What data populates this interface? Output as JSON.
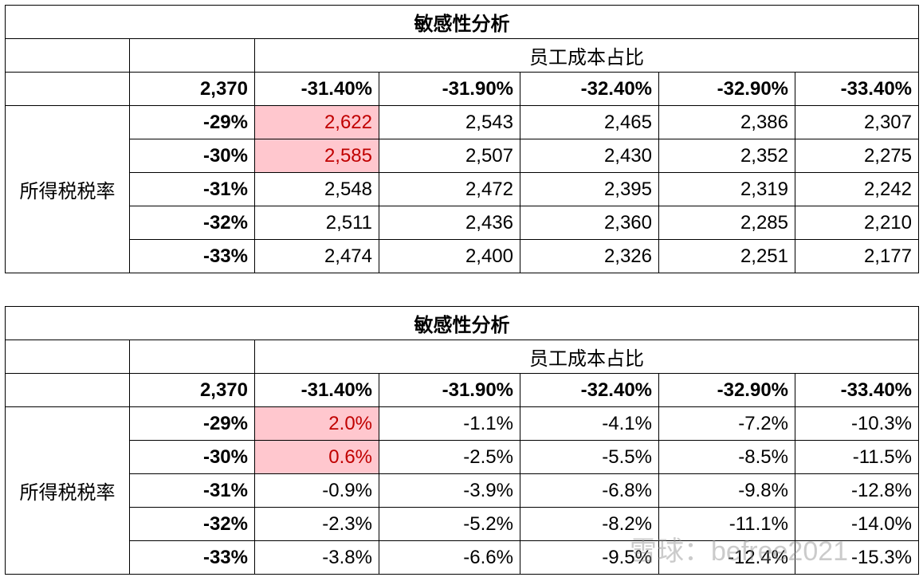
{
  "tables": [
    {
      "title": "敏感性分析",
      "subheader": "员工成本占比",
      "corner_value": "2,370",
      "col_headers": [
        "-31.40%",
        "-31.90%",
        "-32.40%",
        "-32.90%",
        "-33.40%"
      ],
      "row_label": "所得税税率",
      "row_headers": [
        "-29%",
        "-30%",
        "-31%",
        "-32%",
        "-33%"
      ],
      "rows": [
        [
          "2,622",
          "2,543",
          "2,465",
          "2,386",
          "2,307"
        ],
        [
          "2,585",
          "2,507",
          "2,430",
          "2,352",
          "2,275"
        ],
        [
          "2,548",
          "2,472",
          "2,395",
          "2,319",
          "2,242"
        ],
        [
          "2,511",
          "2,436",
          "2,360",
          "2,285",
          "2,210"
        ],
        [
          "2,474",
          "2,400",
          "2,326",
          "2,251",
          "2,177"
        ]
      ]
    },
    {
      "title": "敏感性分析",
      "subheader": "员工成本占比",
      "corner_value": "2,370",
      "col_headers": [
        "-31.40%",
        "-31.90%",
        "-32.40%",
        "-32.90%",
        "-33.40%"
      ],
      "row_label": "所得税税率",
      "row_headers": [
        "-29%",
        "-30%",
        "-31%",
        "-32%",
        "-33%"
      ],
      "rows": [
        [
          "2.0%",
          "-1.1%",
          "-4.1%",
          "-7.2%",
          "-10.3%"
        ],
        [
          "0.6%",
          "-2.5%",
          "-5.5%",
          "-8.5%",
          "-11.5%"
        ],
        [
          "-0.9%",
          "-3.9%",
          "-6.8%",
          "-9.8%",
          "-12.8%"
        ],
        [
          "-2.3%",
          "-5.2%",
          "-8.2%",
          "-11.1%",
          "-14.0%"
        ],
        [
          "-3.8%",
          "-6.6%",
          "-9.5%",
          "-12.4%",
          "-15.3%"
        ]
      ]
    }
  ],
  "watermark": "雪球：befree2021"
}
